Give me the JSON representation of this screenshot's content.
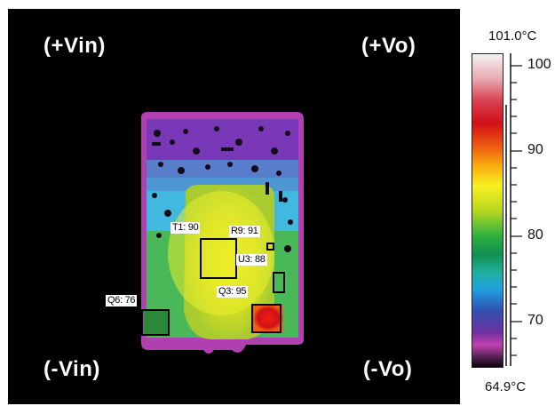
{
  "corners": {
    "vin_plus": "(+Vin)",
    "vo_plus": "(+Vo)",
    "vin_minus": "(-Vin)",
    "vo_minus": "(-Vo)"
  },
  "markers": [
    {
      "label": "T1: 90"
    },
    {
      "label": "R9: 91"
    },
    {
      "label": "U3: 88"
    },
    {
      "label": "Q3: 95"
    },
    {
      "label": "Q6: 76"
    }
  ],
  "scale": {
    "max_label": "101.0°C",
    "min_label": "64.9°C",
    "ticks": [
      "100",
      "90",
      "80",
      "70"
    ]
  }
}
